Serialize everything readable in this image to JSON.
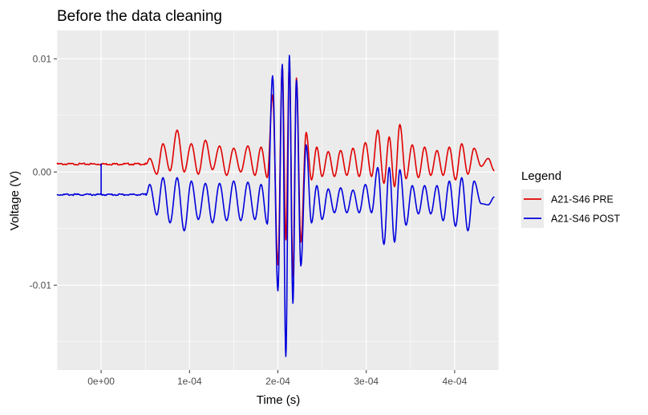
{
  "chart_data": {
    "type": "line",
    "title": "Before the data cleaning",
    "xlabel": "Time (s)",
    "ylabel": "Voltage (V)",
    "xlim": [
      -5e-05,
      0.00045
    ],
    "ylim": [
      -0.0175,
      0.0125
    ],
    "x_ticks": [
      0,
      0.0001,
      0.0002,
      0.0003,
      0.0004
    ],
    "x_tick_labels": [
      "0e+00",
      "1e-04",
      "2e-04",
      "3e-04",
      "4e-04"
    ],
    "y_ticks": [
      -0.01,
      0,
      0.01
    ],
    "y_tick_labels": [
      "-0.01",
      "0.00",
      "0.01"
    ],
    "grid": true,
    "legend": {
      "title": "Legend",
      "position": "right"
    },
    "series": [
      {
        "name": "A21-S46 PRE",
        "color": "#e00000",
        "baseline": 0.0007,
        "spike": {
          "x": 0.0,
          "y": 0.0005
        },
        "peaks": [
          [
            5.5e-05,
            0.0012
          ],
          [
            6.3e-05,
            -0.0002
          ],
          [
            7e-05,
            0.0025
          ],
          [
            7.8e-05,
            0.0001
          ],
          [
            8.6e-05,
            0.0037
          ],
          [
            9.4e-05,
            0.0
          ],
          [
            0.000102,
            0.0025
          ],
          [
            0.00011,
            -0.0002
          ],
          [
            0.000118,
            0.0028
          ],
          [
            0.000126,
            0.0002
          ],
          [
            0.000134,
            0.0023
          ],
          [
            0.000142,
            -0.0003
          ],
          [
            0.00015,
            0.0021
          ],
          [
            0.000158,
            0.0
          ],
          [
            0.000166,
            0.0023
          ],
          [
            0.000174,
            -0.0003
          ],
          [
            0.000181,
            0.0022
          ],
          [
            0.000188,
            -0.0005
          ],
          [
            0.000194,
            0.0068
          ],
          [
            0.0002,
            -0.0082
          ],
          [
            0.000205,
            0.0094
          ],
          [
            0.000209,
            -0.006
          ],
          [
            0.000213,
            0.0096
          ],
          [
            0.000217,
            -0.0092
          ],
          [
            0.000221,
            0.0083
          ],
          [
            0.000226,
            -0.0062
          ],
          [
            0.000232,
            0.0035
          ],
          [
            0.000238,
            -0.0007
          ],
          [
            0.000244,
            0.0022
          ],
          [
            0.00025,
            -0.0004
          ],
          [
            0.000257,
            0.0018
          ],
          [
            0.000264,
            -0.0004
          ],
          [
            0.000271,
            0.0019
          ],
          [
            0.000278,
            -0.0003
          ],
          [
            0.000285,
            0.0021
          ],
          [
            0.000292,
            -0.0004
          ],
          [
            0.000299,
            0.0026
          ],
          [
            0.000306,
            -0.0004
          ],
          [
            0.000313,
            0.0037
          ],
          [
            0.00032,
            -0.001
          ],
          [
            0.000326,
            0.0031
          ],
          [
            0.000332,
            -0.0013
          ],
          [
            0.000338,
            0.0042
          ],
          [
            0.000345,
            -0.0006
          ],
          [
            0.000352,
            0.0024
          ],
          [
            0.000359,
            -0.0005
          ],
          [
            0.000366,
            0.0022
          ],
          [
            0.000373,
            -0.0003
          ],
          [
            0.00038,
            0.0019
          ],
          [
            0.000387,
            -0.0003
          ],
          [
            0.000394,
            0.0022
          ],
          [
            0.000401,
            -0.0007
          ],
          [
            0.000408,
            0.0025
          ],
          [
            0.000415,
            -0.0002
          ],
          [
            0.000422,
            0.0021
          ],
          [
            0.00043,
            0.0005
          ],
          [
            0.000438,
            0.0012
          ],
          [
            0.000445,
            0.0001
          ]
        ]
      },
      {
        "name": "A21-S46 POST",
        "color": "#0000dd",
        "baseline": -0.002,
        "spike": {
          "x": 0.0,
          "y": 0.0007
        },
        "peaks": [
          [
            5.5e-05,
            -0.0011
          ],
          [
            6.3e-05,
            -0.0038
          ],
          [
            7e-05,
            -0.0005
          ],
          [
            7.8e-05,
            -0.0045
          ],
          [
            8.6e-05,
            -0.0005
          ],
          [
            9.4e-05,
            -0.0052
          ],
          [
            0.000102,
            -0.0008
          ],
          [
            0.00011,
            -0.0042
          ],
          [
            0.000118,
            -0.001
          ],
          [
            0.000126,
            -0.0045
          ],
          [
            0.000134,
            -0.001
          ],
          [
            0.000142,
            -0.0043
          ],
          [
            0.00015,
            -0.0008
          ],
          [
            0.000158,
            -0.0043
          ],
          [
            0.000166,
            -0.0009
          ],
          [
            0.000174,
            -0.0042
          ],
          [
            0.000181,
            -0.0011
          ],
          [
            0.000188,
            -0.0046
          ],
          [
            0.000194,
            0.0085
          ],
          [
            0.0002,
            -0.0105
          ],
          [
            0.000205,
            0.0095
          ],
          [
            0.000209,
            -0.0163
          ],
          [
            0.000213,
            0.0103
          ],
          [
            0.000217,
            -0.0116
          ],
          [
            0.000221,
            0.0081
          ],
          [
            0.000226,
            -0.0083
          ],
          [
            0.000232,
            0.0024
          ],
          [
            0.000238,
            -0.0045
          ],
          [
            0.000244,
            -0.0012
          ],
          [
            0.00025,
            -0.0042
          ],
          [
            0.000257,
            -0.0015
          ],
          [
            0.000264,
            -0.0036
          ],
          [
            0.000271,
            -0.0014
          ],
          [
            0.000278,
            -0.0036
          ],
          [
            0.000285,
            -0.0016
          ],
          [
            0.000292,
            -0.0036
          ],
          [
            0.000299,
            -0.0011
          ],
          [
            0.000306,
            -0.0036
          ],
          [
            0.000313,
            0.0004
          ],
          [
            0.00032,
            -0.0064
          ],
          [
            0.000326,
            0.0004
          ],
          [
            0.000332,
            -0.0062
          ],
          [
            0.000338,
            0.0002
          ],
          [
            0.000345,
            -0.0047
          ],
          [
            0.000352,
            -0.0012
          ],
          [
            0.000359,
            -0.0037
          ],
          [
            0.000366,
            -0.0012
          ],
          [
            0.000373,
            -0.0037
          ],
          [
            0.00038,
            -0.0012
          ],
          [
            0.000387,
            -0.0043
          ],
          [
            0.000394,
            -0.0008
          ],
          [
            0.000401,
            -0.0048
          ],
          [
            0.000408,
            -0.0005
          ],
          [
            0.000415,
            -0.0052
          ],
          [
            0.000422,
            -0.0008
          ],
          [
            0.00043,
            -0.0028
          ],
          [
            0.000438,
            -0.0029
          ],
          [
            0.000445,
            -0.0022
          ]
        ]
      }
    ]
  }
}
